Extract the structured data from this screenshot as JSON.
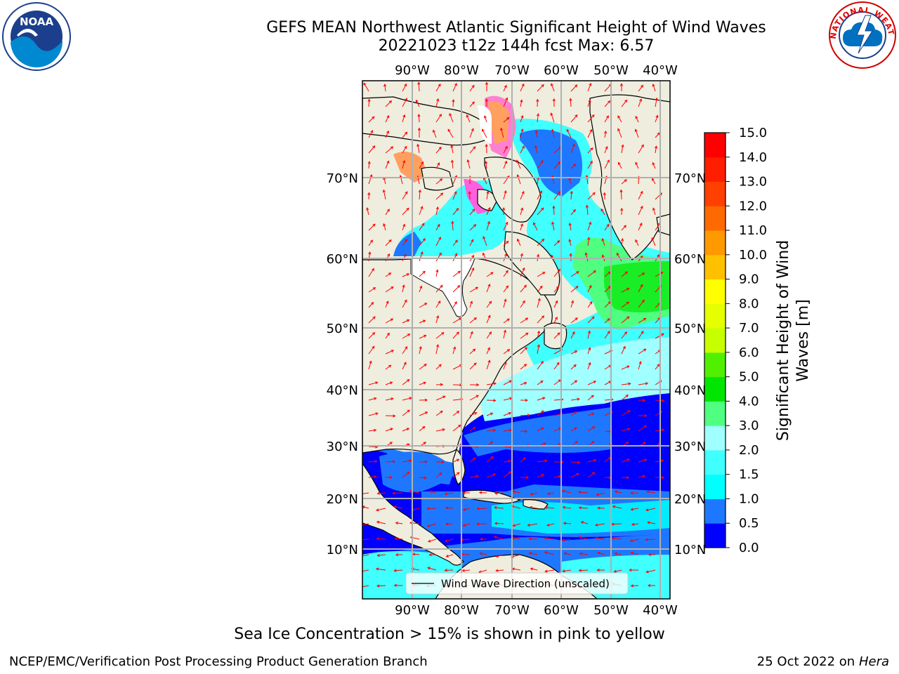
{
  "title_line1": "GEFS MEAN Northwest Atlantic Significant Height of Wind Waves",
  "title_line2": "20221023 t12z 144h fcst   Max: 6.57",
  "footnote": "Sea Ice Concentration > 15% is shown in pink to yellow",
  "credit": "NCEP/EMC/Verification Post Processing Product Generation Branch",
  "date_prefix": "25 Oct 2022 on",
  "date_machine": "Hera",
  "logos": {
    "noaa": {
      "text": "NOAA",
      "icon": "noaa-logo"
    },
    "nws": {
      "text": "NATIONAL WEATHER SERVICE",
      "icon": "nws-logo"
    }
  },
  "map": {
    "lon_labels": [
      "90°W",
      "80°W",
      "70°W",
      "60°W",
      "50°W",
      "40°W"
    ],
    "lat_labels": [
      "70°N",
      "60°N",
      "50°N",
      "40°N",
      "30°N",
      "20°N",
      "10°N"
    ],
    "legend_label": "Wind Wave Direction (unscaled)",
    "colors": {
      "land": "#efedde",
      "ice_mask": "#ffffff",
      "grid": "#b0b0b0",
      "arrow": "#ff0000"
    }
  },
  "colorbar": {
    "label": "Significant Height of Wind Waves [m]",
    "label_line1": "Significant Height of Wind",
    "label_line2": "Waves [m]",
    "ticks": [
      "0.0",
      "0.5",
      "1.0",
      "1.5",
      "2.0",
      "3.0",
      "4.0",
      "5.0",
      "6.0",
      "7.0",
      "8.0",
      "9.0",
      "10.0",
      "11.0",
      "12.0",
      "13.0",
      "14.0",
      "15.0"
    ],
    "colors": [
      "#0000ff",
      "#1e78ff",
      "#00ffff",
      "#40ffff",
      "#a0ffff",
      "#50ff80",
      "#00e600",
      "#50f000",
      "#c8ff00",
      "#e6ff00",
      "#ffff00",
      "#ffc000",
      "#ff9900",
      "#ff6a00",
      "#ff4000",
      "#ff1e00",
      "#ff0000"
    ]
  }
}
